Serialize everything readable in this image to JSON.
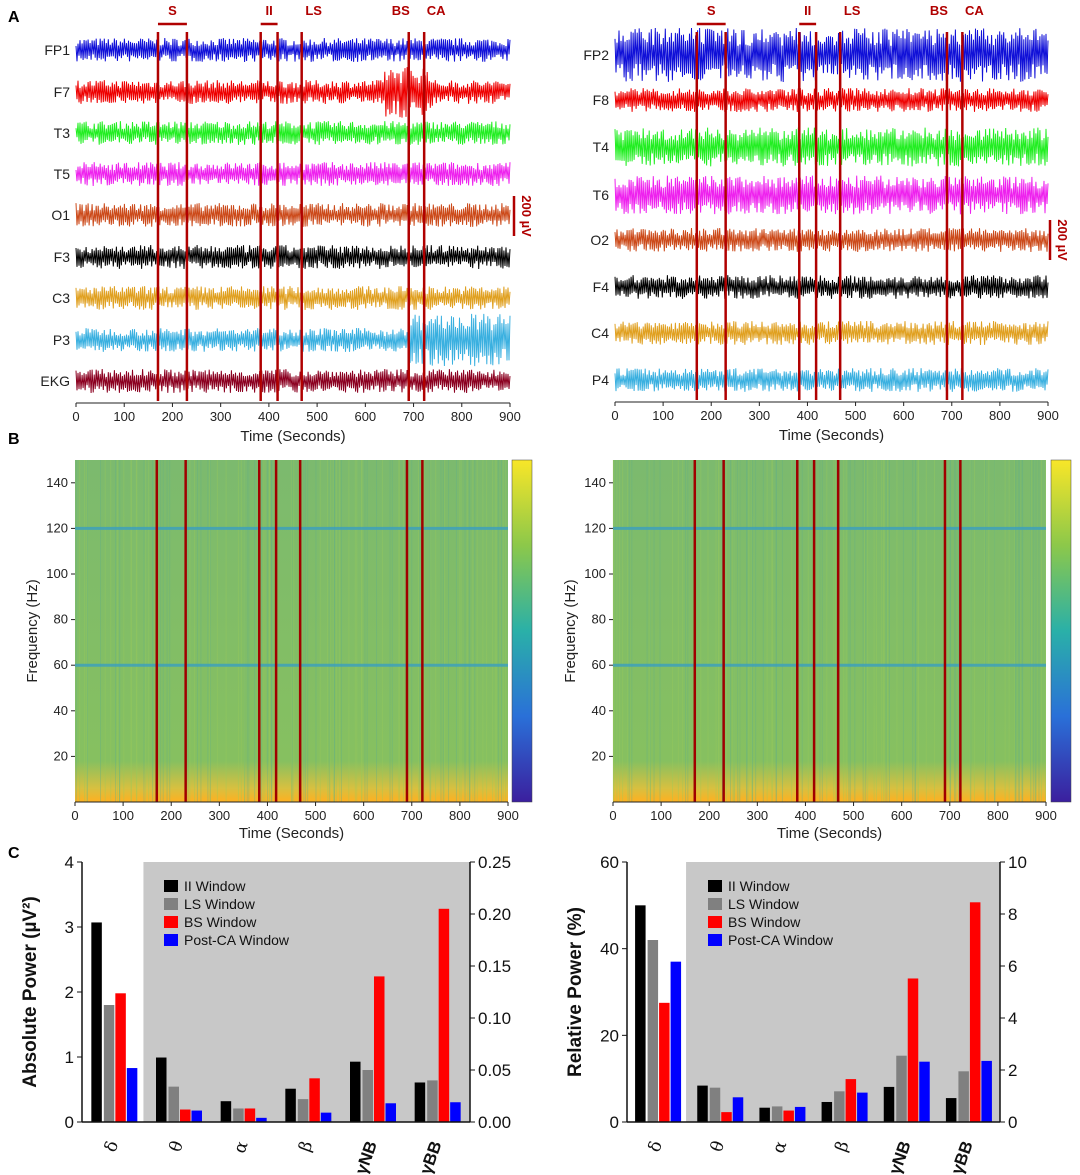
{
  "panels": {
    "a": "A",
    "b": "B",
    "c": "C"
  },
  "events": [
    {
      "label": "S",
      "start": 170,
      "end": 230
    },
    {
      "label": "II",
      "start": 383,
      "end": 418
    },
    {
      "label": "LS",
      "start": 468,
      "end": 468
    },
    {
      "label": "BS",
      "start": 690,
      "end": 690
    },
    {
      "label": "CA",
      "start": 722,
      "end": 722
    }
  ],
  "scale_bar_label": "200 µV",
  "time_label": "Time (Seconds)",
  "freq_label": "Frequency (Hz)",
  "time_ticks": [
    0,
    100,
    200,
    300,
    400,
    500,
    600,
    700,
    800,
    900
  ],
  "freq_ticks": [
    20,
    40,
    60,
    80,
    100,
    120,
    140
  ],
  "eeg_left": {
    "channels": [
      {
        "name": "FP1",
        "color": "#1010d8"
      },
      {
        "name": "F7",
        "color": "#ee0000"
      },
      {
        "name": "T3",
        "color": "#22ee22"
      },
      {
        "name": "T5",
        "color": "#ee22ee"
      },
      {
        "name": "O1",
        "color": "#cc4a1a"
      },
      {
        "name": "F3",
        "color": "#000000"
      },
      {
        "name": "C3",
        "color": "#e0a020"
      },
      {
        "name": "P3",
        "color": "#3ab0e0"
      },
      {
        "name": "EKG",
        "color": "#8b0020"
      }
    ]
  },
  "eeg_right": {
    "channels": [
      {
        "name": "FP2",
        "color": "#1010d8"
      },
      {
        "name": "F8",
        "color": "#ee0000"
      },
      {
        "name": "T4",
        "color": "#22ee22"
      },
      {
        "name": "T6",
        "color": "#ee22ee"
      },
      {
        "name": "O2",
        "color": "#cc4a1a"
      },
      {
        "name": "F4",
        "color": "#000000"
      },
      {
        "name": "C4",
        "color": "#e0a020"
      },
      {
        "name": "P4",
        "color": "#3ab0e0"
      }
    ]
  },
  "chart_data": [
    {
      "type": "bar",
      "ylabel": "Absolute Power (µV²)",
      "categories": [
        "δ",
        "θ",
        "α",
        "β",
        "γNB",
        "γBB"
      ],
      "left_axis": {
        "ylim": [
          0,
          4
        ],
        "ticks": [
          0,
          1,
          2,
          3,
          4
        ],
        "applies_to": [
          "δ"
        ]
      },
      "right_axis": {
        "ylim": [
          0,
          0.25
        ],
        "ticks": [
          "0.00",
          "0.05",
          "0.10",
          "0.15",
          "0.20",
          "0.25"
        ]
      },
      "series": [
        {
          "name": "II Window",
          "color": "#000000",
          "values": [
            3.07,
            0.062,
            0.02,
            0.032,
            0.058,
            0.038
          ]
        },
        {
          "name": "LS Window",
          "color": "#808080",
          "values": [
            1.8,
            0.034,
            0.013,
            0.022,
            0.05,
            0.04
          ]
        },
        {
          "name": "BS Window",
          "color": "#ff0000",
          "values": [
            1.98,
            0.012,
            0.013,
            0.042,
            0.14,
            0.205
          ]
        },
        {
          "name": "Post-CA Window",
          "color": "#0000ff",
          "values": [
            0.83,
            0.011,
            0.004,
            0.009,
            0.018,
            0.019
          ]
        }
      ]
    },
    {
      "type": "bar",
      "ylabel": "Relative  Power (%)",
      "categories": [
        "δ",
        "θ",
        "α",
        "β",
        "γNB",
        "γBB"
      ],
      "left_axis": {
        "ylim": [
          0,
          60
        ],
        "ticks": [
          0,
          20,
          40,
          60
        ],
        "applies_to": [
          "δ"
        ]
      },
      "right_axis": {
        "ylim": [
          0,
          10
        ],
        "ticks": [
          0,
          2,
          4,
          6,
          8,
          10
        ]
      },
      "series": [
        {
          "name": "II Window",
          "color": "#000000",
          "values": [
            50,
            1.4,
            0.55,
            0.77,
            1.35,
            0.92
          ]
        },
        {
          "name": "LS Window",
          "color": "#808080",
          "values": [
            42,
            1.32,
            0.6,
            1.18,
            2.55,
            1.95
          ]
        },
        {
          "name": "BS Window",
          "color": "#ff0000",
          "values": [
            27.5,
            0.38,
            0.44,
            1.65,
            5.52,
            8.45
          ]
        },
        {
          "name": "Post-CA Window",
          "color": "#0000ff",
          "values": [
            37,
            0.95,
            0.58,
            1.13,
            2.32,
            2.35
          ]
        }
      ]
    }
  ]
}
